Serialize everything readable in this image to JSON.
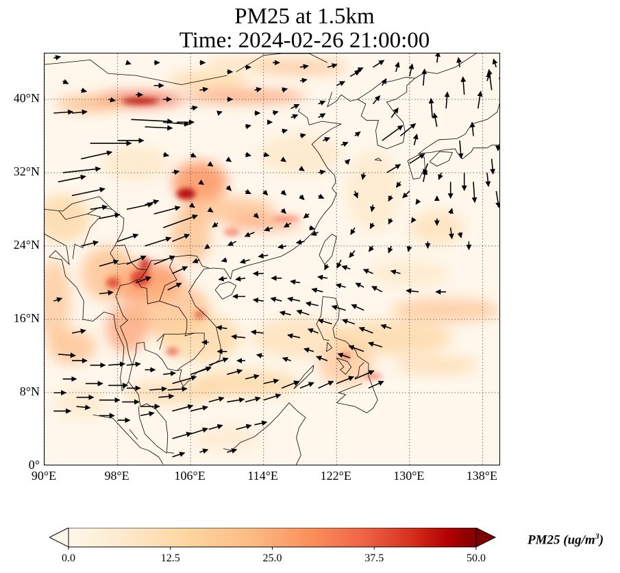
{
  "title": {
    "line1": "PM25 at 1.5km",
    "line2": "Time: 2024-02-26 21:00:00"
  },
  "axes": {
    "lon_labels": [
      "90°E",
      "98°E",
      "106°E",
      "114°E",
      "122°E",
      "130°E",
      "138°E"
    ],
    "lat_labels": [
      "0°",
      "8°N",
      "16°N",
      "24°N",
      "32°N",
      "40°N"
    ],
    "lon_range": [
      90,
      140
    ],
    "lat_range": [
      0,
      45
    ]
  },
  "colorbar": {
    "label_main": "PM25 (ug/m",
    "label_sup": "3",
    "label_close": ")",
    "ticks": [
      "0.0",
      "12.5",
      "25.0",
      "37.5",
      "50.0"
    ],
    "range": [
      0,
      50
    ],
    "colormap": "OrRd",
    "extend": "both"
  },
  "colors": {
    "low": "#fff7ec",
    "mid": "#fdbb84",
    "high": "#d7301f",
    "max": "#7f0000",
    "arrows": "#000000",
    "coast": "#000000",
    "grid": "#555555"
  },
  "map": {
    "projection": "PlateCarree",
    "gridlines": "dotted",
    "overlay": "wind vectors"
  }
}
